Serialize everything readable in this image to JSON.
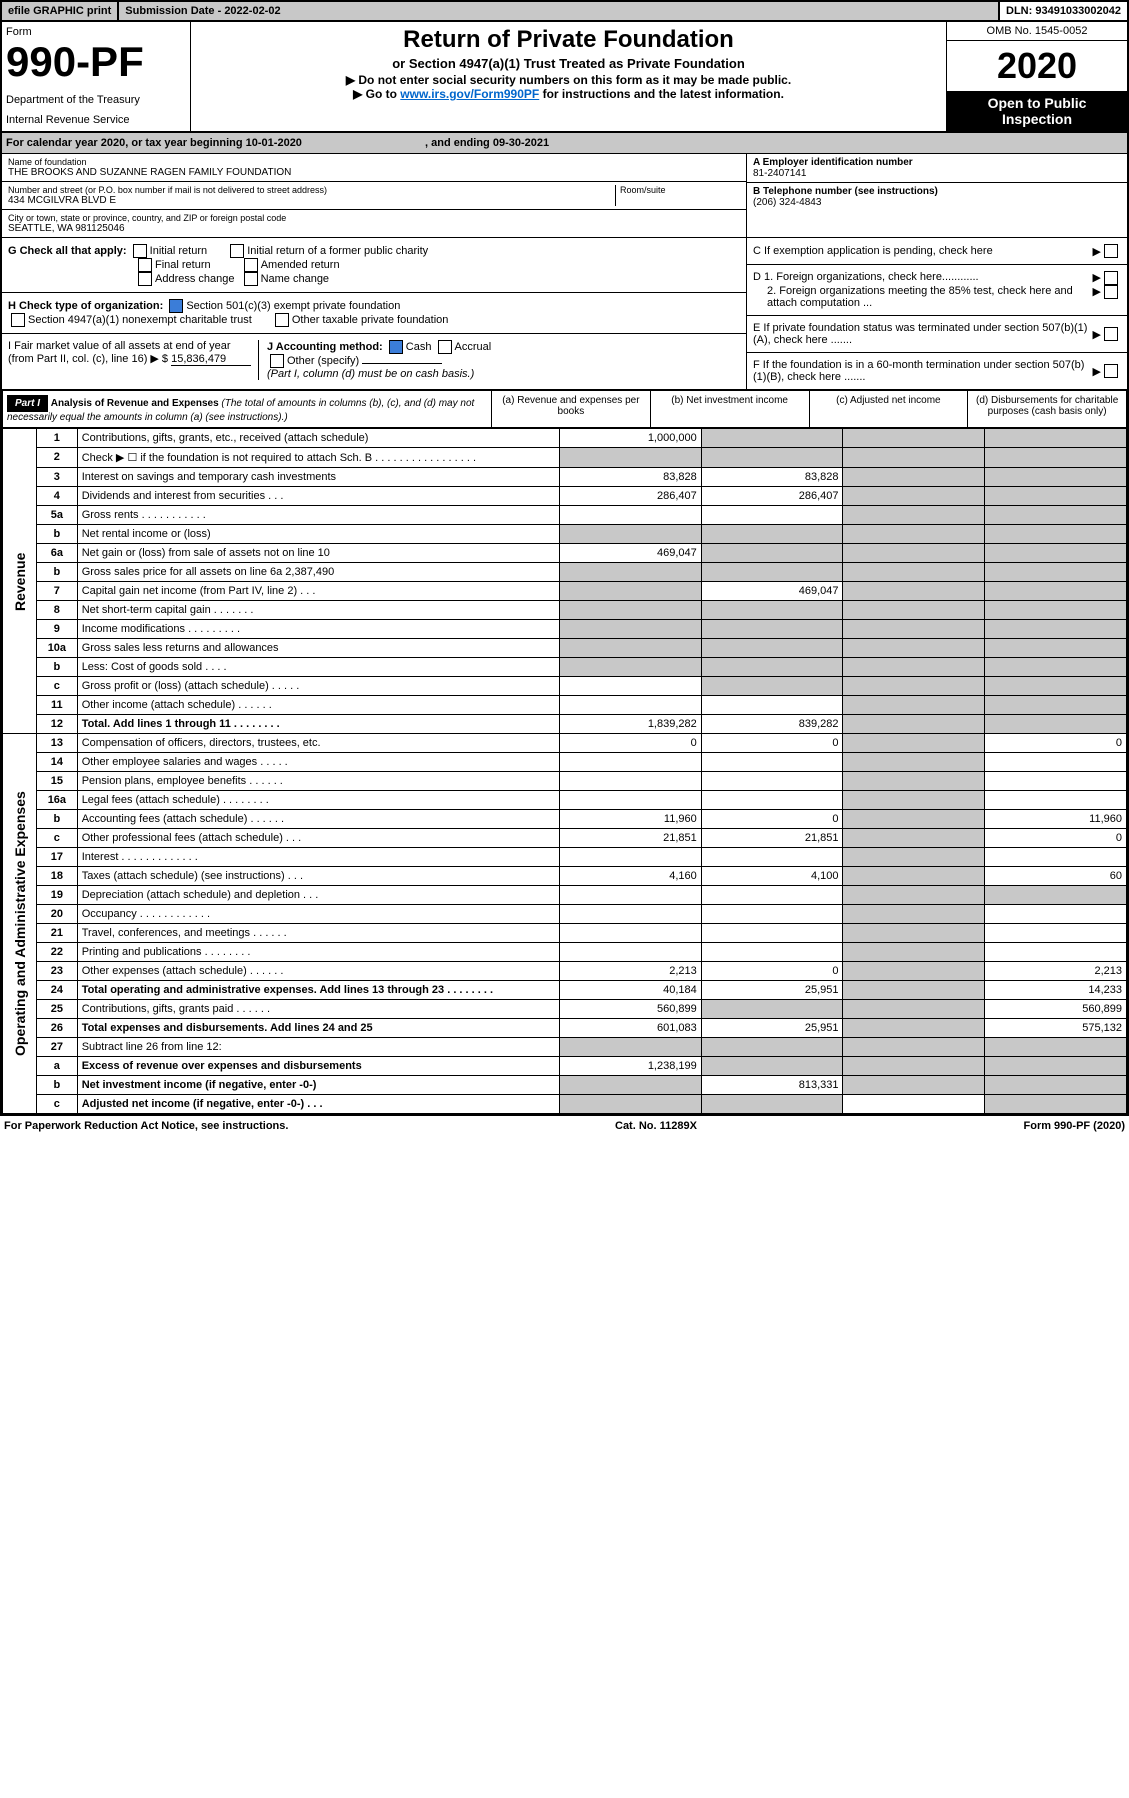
{
  "topbar": {
    "efile": "efile GRAPHIC print",
    "submission": "Submission Date - 2022-02-02",
    "dln": "DLN: 93491033002042"
  },
  "header": {
    "form_label": "Form",
    "form_num": "990-PF",
    "dept1": "Department of the Treasury",
    "dept2": "Internal Revenue Service",
    "title": "Return of Private Foundation",
    "subtitle": "or Section 4947(a)(1) Trust Treated as Private Foundation",
    "instr1": "▶ Do not enter social security numbers on this form as it may be made public.",
    "instr2_pre": "▶ Go to ",
    "instr2_link": "www.irs.gov/Form990PF",
    "instr2_post": " for instructions and the latest information.",
    "omb": "OMB No. 1545-0052",
    "year": "2020",
    "open1": "Open to Public",
    "open2": "Inspection"
  },
  "calyear": {
    "text_pre": "For calendar year 2020, or tax year beginning ",
    "begin": "10-01-2020",
    "text_mid": ", and ending ",
    "end": "09-30-2021"
  },
  "foundation": {
    "name_label": "Name of foundation",
    "name": "THE BROOKS AND SUZANNE RAGEN FAMILY FOUNDATION",
    "addr_label": "Number and street (or P.O. box number if mail is not delivered to street address)",
    "addr": "434 MCGILVRA BLVD E",
    "room_label": "Room/suite",
    "city_label": "City or town, state or province, country, and ZIP or foreign postal code",
    "city": "SEATTLE, WA  981125046",
    "ein_label": "A Employer identification number",
    "ein": "81-2407141",
    "phone_label": "B Telephone number (see instructions)",
    "phone": "(206) 324-4843",
    "c_label": "C If exemption application is pending, check here",
    "d1": "D 1. Foreign organizations, check here............",
    "d2": "2. Foreign organizations meeting the 85% test, check here and attach computation ...",
    "e_label": "E  If private foundation status was terminated under section 507(b)(1)(A), check here .......",
    "f_label": "F  If the foundation is in a 60-month termination under section 507(b)(1)(B), check here .......",
    "g_label": "G Check all that apply:",
    "g_opts": [
      "Initial return",
      "Initial return of a former public charity",
      "Final return",
      "Amended return",
      "Address change",
      "Name change"
    ],
    "h_label": "H Check type of organization:",
    "h1": "Section 501(c)(3) exempt private foundation",
    "h2": "Section 4947(a)(1) nonexempt charitable trust",
    "h3": "Other taxable private foundation",
    "i_label": "I Fair market value of all assets at end of year (from Part II, col. (c), line 16) ▶ $",
    "i_val": "15,836,479",
    "j_label": "J Accounting method:",
    "j_cash": "Cash",
    "j_accrual": "Accrual",
    "j_other": "Other (specify)",
    "j_note": "(Part I, column (d) must be on cash basis.)"
  },
  "part1": {
    "label": "Part I",
    "title": "Analysis of Revenue and Expenses",
    "note": "(The total of amounts in columns (b), (c), and (d) may not necessarily equal the amounts in column (a) (see instructions).)",
    "col_a": "(a)   Revenue and expenses per books",
    "col_b": "(b)   Net investment income",
    "col_c": "(c)   Adjusted net income",
    "col_d": "(d)   Disbursements for charitable purposes (cash basis only)"
  },
  "revenue_label": "Revenue",
  "expenses_label": "Operating and Administrative Expenses",
  "rows": [
    {
      "n": "1",
      "l": "Contributions, gifts, grants, etc., received (attach schedule)",
      "a": "1,000,000",
      "b": "",
      "c": "",
      "d": "",
      "ag": false,
      "bg": true,
      "cg": true,
      "dg": true
    },
    {
      "n": "2",
      "l": "Check ▶ ☐ if the foundation is not required to attach Sch. B   .  .  .  .  .  .  .  .  .  .  .  .  .  .  .  .  .",
      "a": "",
      "b": "",
      "c": "",
      "d": "",
      "ag": true,
      "bg": true,
      "cg": true,
      "dg": true
    },
    {
      "n": "3",
      "l": "Interest on savings and temporary cash investments",
      "a": "83,828",
      "b": "83,828",
      "c": "",
      "d": "",
      "ag": false,
      "bg": false,
      "cg": true,
      "dg": true
    },
    {
      "n": "4",
      "l": "Dividends and interest from securities   .   .   .",
      "a": "286,407",
      "b": "286,407",
      "c": "",
      "d": "",
      "ag": false,
      "bg": false,
      "cg": true,
      "dg": true
    },
    {
      "n": "5a",
      "l": "Gross rents   .   .   .   .   .   .   .   .   .   .   .",
      "a": "",
      "b": "",
      "c": "",
      "d": "",
      "ag": false,
      "bg": false,
      "cg": true,
      "dg": true
    },
    {
      "n": "b",
      "l": "Net rental income or (loss)",
      "a": "",
      "b": "",
      "c": "",
      "d": "",
      "ag": true,
      "bg": true,
      "cg": true,
      "dg": true
    },
    {
      "n": "6a",
      "l": "Net gain or (loss) from sale of assets not on line 10",
      "a": "469,047",
      "b": "",
      "c": "",
      "d": "",
      "ag": false,
      "bg": true,
      "cg": true,
      "dg": true
    },
    {
      "n": "b",
      "l": "Gross sales price for all assets on line 6a          2,387,490",
      "a": "",
      "b": "",
      "c": "",
      "d": "",
      "ag": true,
      "bg": true,
      "cg": true,
      "dg": true
    },
    {
      "n": "7",
      "l": "Capital gain net income (from Part IV, line 2)   .   .   .",
      "a": "",
      "b": "469,047",
      "c": "",
      "d": "",
      "ag": true,
      "bg": false,
      "cg": true,
      "dg": true
    },
    {
      "n": "8",
      "l": "Net short-term capital gain   .   .   .   .   .   .   .",
      "a": "",
      "b": "",
      "c": "",
      "d": "",
      "ag": true,
      "bg": true,
      "cg": true,
      "dg": true
    },
    {
      "n": "9",
      "l": "Income modifications  .   .   .   .   .   .   .   .   .",
      "a": "",
      "b": "",
      "c": "",
      "d": "",
      "ag": true,
      "bg": true,
      "cg": true,
      "dg": true
    },
    {
      "n": "10a",
      "l": "Gross sales less returns and allowances",
      "a": "",
      "b": "",
      "c": "",
      "d": "",
      "ag": true,
      "bg": true,
      "cg": true,
      "dg": true
    },
    {
      "n": "b",
      "l": "Less: Cost of goods sold   .   .   .   .",
      "a": "",
      "b": "",
      "c": "",
      "d": "",
      "ag": true,
      "bg": true,
      "cg": true,
      "dg": true
    },
    {
      "n": "c",
      "l": "Gross profit or (loss) (attach schedule)   .   .   .   .   .",
      "a": "",
      "b": "",
      "c": "",
      "d": "",
      "ag": false,
      "bg": true,
      "cg": true,
      "dg": true
    },
    {
      "n": "11",
      "l": "Other income (attach schedule)   .   .   .   .   .   .",
      "a": "",
      "b": "",
      "c": "",
      "d": "",
      "ag": false,
      "bg": false,
      "cg": true,
      "dg": true
    },
    {
      "n": "12",
      "l": "Total. Add lines 1 through 11   .   .   .   .   .   .   .   .",
      "a": "1,839,282",
      "b": "839,282",
      "c": "",
      "d": "",
      "ag": false,
      "bg": false,
      "cg": true,
      "dg": true,
      "bold": true
    },
    {
      "n": "13",
      "l": "Compensation of officers, directors, trustees, etc.",
      "a": "0",
      "b": "0",
      "c": "",
      "d": "0",
      "ag": false,
      "bg": false,
      "cg": true,
      "dg": false
    },
    {
      "n": "14",
      "l": "Other employee salaries and wages   .   .   .   .   .",
      "a": "",
      "b": "",
      "c": "",
      "d": "",
      "ag": false,
      "bg": false,
      "cg": true,
      "dg": false
    },
    {
      "n": "15",
      "l": "Pension plans, employee benefits  .   .   .   .   .   .",
      "a": "",
      "b": "",
      "c": "",
      "d": "",
      "ag": false,
      "bg": false,
      "cg": true,
      "dg": false
    },
    {
      "n": "16a",
      "l": "Legal fees (attach schedule)  .   .   .   .   .   .   .   .",
      "a": "",
      "b": "",
      "c": "",
      "d": "",
      "ag": false,
      "bg": false,
      "cg": true,
      "dg": false
    },
    {
      "n": "b",
      "l": "Accounting fees (attach schedule)  .   .   .   .   .   .",
      "a": "11,960",
      "b": "0",
      "c": "",
      "d": "11,960",
      "ag": false,
      "bg": false,
      "cg": true,
      "dg": false
    },
    {
      "n": "c",
      "l": "Other professional fees (attach schedule)   .   .   .",
      "a": "21,851",
      "b": "21,851",
      "c": "",
      "d": "0",
      "ag": false,
      "bg": false,
      "cg": true,
      "dg": false
    },
    {
      "n": "17",
      "l": "Interest  .   .   .   .   .   .   .   .   .   .   .   .   .",
      "a": "",
      "b": "",
      "c": "",
      "d": "",
      "ag": false,
      "bg": false,
      "cg": true,
      "dg": false
    },
    {
      "n": "18",
      "l": "Taxes (attach schedule) (see instructions)   .   .   .",
      "a": "4,160",
      "b": "4,100",
      "c": "",
      "d": "60",
      "ag": false,
      "bg": false,
      "cg": true,
      "dg": false
    },
    {
      "n": "19",
      "l": "Depreciation (attach schedule) and depletion   .   .   .",
      "a": "",
      "b": "",
      "c": "",
      "d": "",
      "ag": false,
      "bg": false,
      "cg": true,
      "dg": true
    },
    {
      "n": "20",
      "l": "Occupancy  .   .   .   .   .   .   .   .   .   .   .   .",
      "a": "",
      "b": "",
      "c": "",
      "d": "",
      "ag": false,
      "bg": false,
      "cg": true,
      "dg": false
    },
    {
      "n": "21",
      "l": "Travel, conferences, and meetings  .   .   .   .   .   .",
      "a": "",
      "b": "",
      "c": "",
      "d": "",
      "ag": false,
      "bg": false,
      "cg": true,
      "dg": false
    },
    {
      "n": "22",
      "l": "Printing and publications  .   .   .   .   .   .   .   .",
      "a": "",
      "b": "",
      "c": "",
      "d": "",
      "ag": false,
      "bg": false,
      "cg": true,
      "dg": false
    },
    {
      "n": "23",
      "l": "Other expenses (attach schedule)  .   .   .   .   .   .",
      "a": "2,213",
      "b": "0",
      "c": "",
      "d": "2,213",
      "ag": false,
      "bg": false,
      "cg": true,
      "dg": false
    },
    {
      "n": "24",
      "l": "Total operating and administrative expenses. Add lines 13 through 23   .   .   .   .   .   .   .   .",
      "a": "40,184",
      "b": "25,951",
      "c": "",
      "d": "14,233",
      "ag": false,
      "bg": false,
      "cg": true,
      "dg": false,
      "bold": true
    },
    {
      "n": "25",
      "l": "Contributions, gifts, grants paid   .   .   .   .   .   .",
      "a": "560,899",
      "b": "",
      "c": "",
      "d": "560,899",
      "ag": false,
      "bg": true,
      "cg": true,
      "dg": false
    },
    {
      "n": "26",
      "l": "Total expenses and disbursements. Add lines 24 and 25",
      "a": "601,083",
      "b": "25,951",
      "c": "",
      "d": "575,132",
      "ag": false,
      "bg": false,
      "cg": true,
      "dg": false,
      "bold": true
    },
    {
      "n": "27",
      "l": "Subtract line 26 from line 12:",
      "a": "",
      "b": "",
      "c": "",
      "d": "",
      "ag": true,
      "bg": true,
      "cg": true,
      "dg": true
    },
    {
      "n": "a",
      "l": "Excess of revenue over expenses and disbursements",
      "a": "1,238,199",
      "b": "",
      "c": "",
      "d": "",
      "ag": false,
      "bg": true,
      "cg": true,
      "dg": true,
      "bold": true
    },
    {
      "n": "b",
      "l": "Net investment income (if negative, enter -0-)",
      "a": "",
      "b": "813,331",
      "c": "",
      "d": "",
      "ag": true,
      "bg": false,
      "cg": true,
      "dg": true,
      "bold": true
    },
    {
      "n": "c",
      "l": "Adjusted net income (if negative, enter -0-)   .   .   .",
      "a": "",
      "b": "",
      "c": "",
      "d": "",
      "ag": true,
      "bg": true,
      "cg": false,
      "dg": true,
      "bold": true
    }
  ],
  "footer": {
    "left": "For Paperwork Reduction Act Notice, see instructions.",
    "mid": "Cat. No. 11289X",
    "right": "Form 990-PF (2020)"
  }
}
